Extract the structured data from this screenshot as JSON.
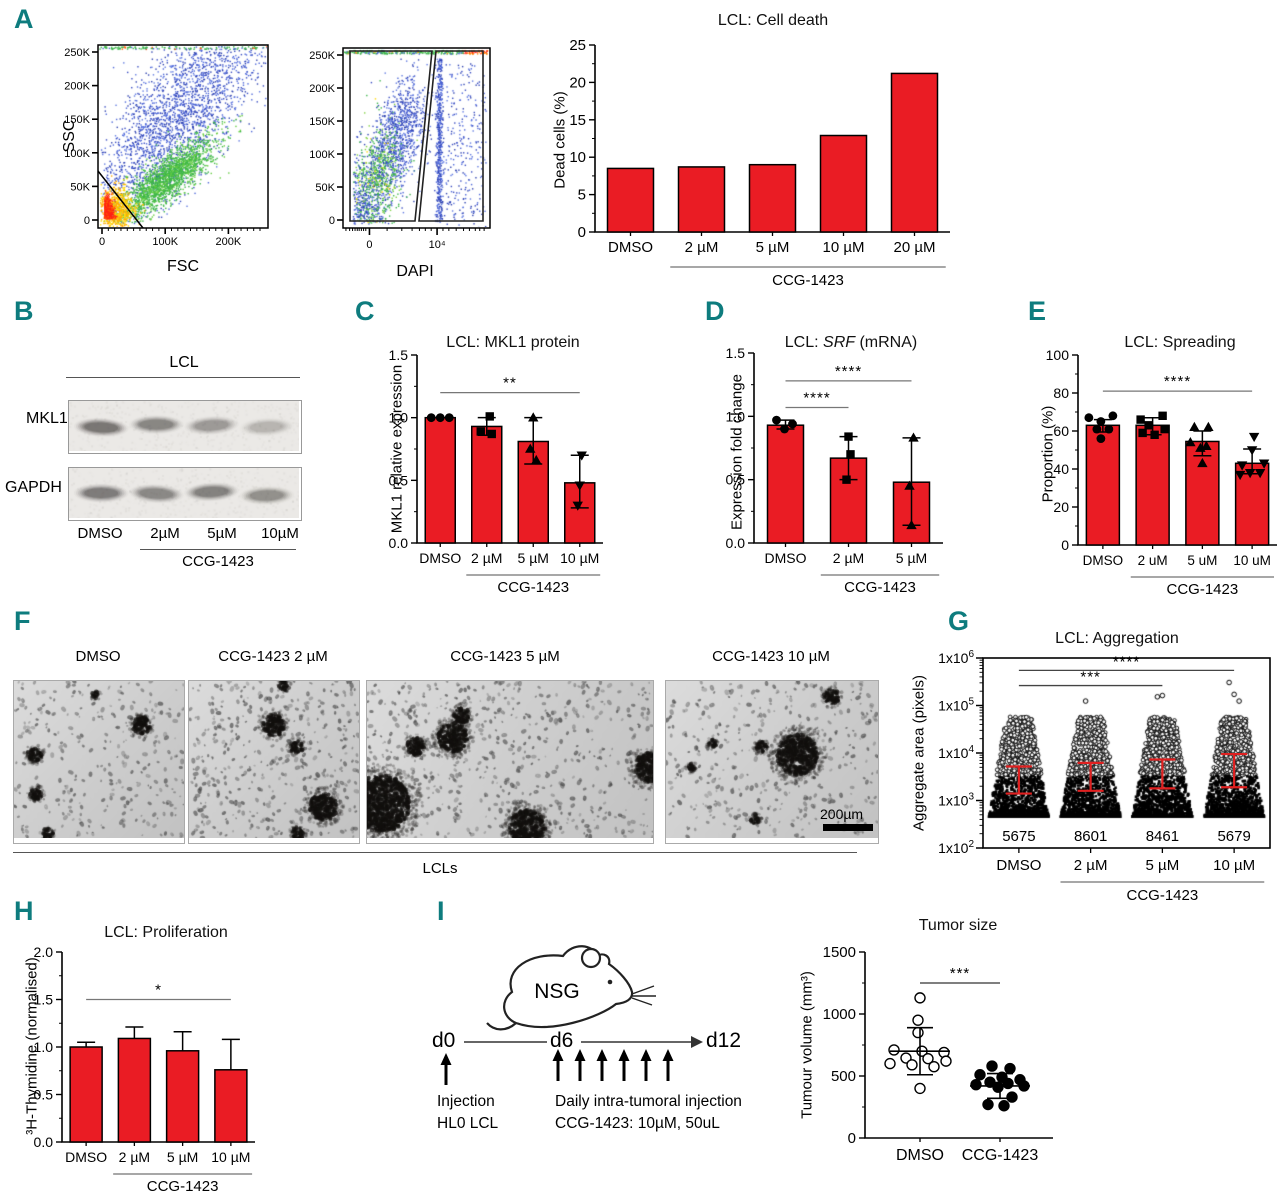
{
  "figure": {
    "background": "#ffffff",
    "bar_color": "#EA1C24",
    "panel_letter_color": "#0E7C7E",
    "error_bar_red": "#E02020"
  },
  "panels": {
    "A": {
      "label": "A",
      "flow1": {
        "ylabel": "SSC",
        "xlabel": "FSC",
        "yticks": [
          "0",
          "50K",
          "100K",
          "150K",
          "200K",
          "250K"
        ],
        "xticks": [
          "0",
          "100K",
          "200K"
        ]
      },
      "flow2": {
        "xlabel": "DAPI",
        "yticks": [
          "0",
          "50K",
          "100K",
          "150K",
          "200K",
          "250K"
        ],
        "xticks": [
          "0",
          "10⁴"
        ]
      }
    },
    "B": {
      "label": "B",
      "header": "LCL",
      "row1": "MKL1",
      "row2": "GAPDH",
      "lanes": [
        "DMSO",
        "2µM",
        "5µM",
        "10µM"
      ],
      "group": "CCG-1423",
      "mkl1_intensities": [
        1.0,
        0.82,
        0.62,
        0.38
      ],
      "gapdh_intensities": [
        0.95,
        0.8,
        0.88,
        0.72
      ]
    },
    "C": {
      "label": "C"
    },
    "D": {
      "label": "D",
      "title_prefix": "LCL: ",
      "title_italic": "SRF",
      "title_suffix": " (mRNA)"
    },
    "E": {
      "label": "E"
    },
    "F": {
      "label": "F",
      "image_labels": [
        "DMSO",
        "CCG-1423 2 µM",
        "CCG-1423 5 µM",
        "CCG-1423 10 µM"
      ],
      "scale_bar": "200µm",
      "caption": "LCLs",
      "clusters": [
        [
          [
            0.75,
            0.28,
            0.05
          ],
          [
            0.12,
            0.47,
            0.042
          ],
          [
            0.13,
            0.72,
            0.036
          ],
          [
            0.2,
            0.97,
            0.03
          ],
          [
            0.48,
            0.09,
            0.02
          ]
        ],
        [
          [
            0.5,
            0.28,
            0.062
          ],
          [
            0.63,
            0.42,
            0.038
          ],
          [
            0.79,
            0.8,
            0.078
          ],
          [
            0.64,
            0.97,
            0.035
          ],
          [
            0.56,
            0.03,
            0.03
          ]
        ],
        [
          [
            0.3,
            0.36,
            0.05
          ],
          [
            0.17,
            0.42,
            0.03
          ],
          [
            0.05,
            0.78,
            0.095
          ],
          [
            0.56,
            0.93,
            0.06
          ],
          [
            0.33,
            0.22,
            0.028
          ],
          [
            0.99,
            0.55,
            0.05
          ]
        ],
        [
          [
            0.62,
            0.47,
            0.092
          ],
          [
            0.78,
            0.1,
            0.035
          ],
          [
            0.45,
            0.42,
            0.026
          ],
          [
            0.22,
            0.4,
            0.02
          ],
          [
            0.42,
            0.88,
            0.022
          ],
          [
            0.12,
            0.55,
            0.02
          ]
        ]
      ],
      "speck_density": [
        300,
        430,
        620,
        400
      ]
    },
    "G": {
      "label": "G"
    },
    "H": {
      "label": "H"
    },
    "I": {
      "label": "I",
      "mouse": "NSG",
      "timeline": [
        "d0",
        "d6",
        "d12"
      ],
      "note1_line1": "Injection",
      "note1_line2": "HL0 LCL",
      "note2_line1": "Daily intra-tumoral injection",
      "note2_line2": "CCG-1423: 10µM, 50uL"
    }
  },
  "chart_data": [
    {
      "id": "cell_death",
      "type": "bar",
      "title": "LCL: Cell death",
      "ylabel": "Dead cells (%)",
      "ylim": [
        0,
        25
      ],
      "ytick_vals": [
        0,
        5,
        10,
        15,
        20,
        25
      ],
      "ytick_labels": [
        "0",
        "5",
        "10",
        "15",
        "20",
        "25"
      ],
      "categories": [
        "DMSO",
        "2 µM",
        "5 µM",
        "10 µM",
        "20 µM"
      ],
      "values": [
        8.5,
        8.7,
        9.0,
        12.9,
        21.2
      ],
      "group": {
        "label": "CCG-1423",
        "from": 1,
        "to": 4
      }
    },
    {
      "id": "mkl1_protein",
      "type": "bar",
      "title": "LCL: MKL1 protein",
      "ylabel": "MKL1 relative expression",
      "ylim": [
        0,
        1.5
      ],
      "ytick_vals": [
        0,
        0.5,
        1,
        1.5
      ],
      "ytick_labels": [
        "0.0",
        "0.5",
        "1.0",
        "1.5"
      ],
      "categories": [
        "DMSO",
        "2 µM",
        "5 µM",
        "10 µM"
      ],
      "values": [
        1.0,
        0.93,
        0.81,
        0.48
      ],
      "errors": [
        null,
        [
          0.86,
          1.0
        ],
        [
          0.63,
          1.0
        ],
        [
          0.28,
          0.7
        ]
      ],
      "points": [
        [
          [
            -9,
            1.0
          ],
          [
            0,
            1.0
          ],
          [
            9,
            1.0
          ]
        ],
        [
          [
            3,
            1.01
          ],
          [
            -6,
            0.89
          ],
          [
            5,
            0.87
          ]
        ],
        [
          [
            0,
            1.0
          ],
          [
            -3,
            0.75
          ],
          [
            3,
            0.66
          ]
        ],
        [
          [
            2,
            0.7
          ],
          [
            0,
            0.46
          ],
          [
            -2,
            0.3
          ]
        ]
      ],
      "markers": [
        "circle",
        "square",
        "tri",
        "vtri"
      ],
      "sig": [
        {
          "a": 0,
          "b": 3,
          "y": 1.2,
          "label": "**"
        }
      ],
      "group": {
        "label": "CCG-1423",
        "from": 1,
        "to": 3
      }
    },
    {
      "id": "srf_mrna",
      "type": "bar",
      "title": "LCL: SRF (mRNA)",
      "ylabel": "Expression fold change",
      "ylim": [
        0,
        1.5
      ],
      "ytick_vals": [
        0,
        0.5,
        1,
        1.5
      ],
      "ytick_labels": [
        "0.0",
        "0.5",
        "1.0",
        "1.5"
      ],
      "categories": [
        "DMSO",
        "2 µM",
        "5 µM"
      ],
      "values": [
        0.93,
        0.67,
        0.48
      ],
      "errors": [
        [
          0.9,
          0.97
        ],
        [
          0.5,
          0.84
        ],
        [
          0.14,
          0.83
        ]
      ],
      "points": [
        [
          [
            -9,
            0.97
          ],
          [
            -1,
            0.9
          ],
          [
            7,
            0.94
          ]
        ],
        [
          [
            0,
            0.84
          ],
          [
            2,
            0.7
          ],
          [
            -2,
            0.5
          ]
        ],
        [
          [
            2,
            0.83
          ],
          [
            -2,
            0.45
          ],
          [
            0,
            0.14
          ]
        ]
      ],
      "markers": [
        "circle",
        "square",
        "tri"
      ],
      "sig": [
        {
          "a": 0,
          "b": 1,
          "y": 1.07,
          "label": "****"
        },
        {
          "a": 0,
          "b": 2,
          "y": 1.28,
          "label": "****"
        }
      ],
      "group": {
        "label": "CCG-1423",
        "from": 1,
        "to": 2
      }
    },
    {
      "id": "spreading",
      "type": "bar",
      "title": "LCL: Spreading",
      "ylabel": "Proportion (%)",
      "ylim": [
        0,
        100
      ],
      "ytick_vals": [
        0,
        20,
        40,
        60,
        80,
        100
      ],
      "ytick_labels": [
        "0",
        "20",
        "40",
        "60",
        "80",
        "100"
      ],
      "categories": [
        "DMSO",
        "2 uM",
        "5 uM",
        "10 uM"
      ],
      "values": [
        63,
        63,
        54.5,
        43
      ],
      "errors": [
        [
          59.5,
          66
        ],
        [
          58,
          67
        ],
        [
          47,
          60
        ],
        [
          37.5,
          50.5
        ]
      ],
      "points": [
        [
          [
            -14,
            67
          ],
          [
            -2,
            65
          ],
          [
            10,
            68
          ],
          [
            6,
            61
          ],
          [
            -6,
            61
          ],
          [
            -2,
            56
          ]
        ],
        [
          [
            -12,
            66
          ],
          [
            10,
            68
          ],
          [
            -4,
            63
          ],
          [
            12,
            61
          ],
          [
            -10,
            59
          ],
          [
            2,
            58
          ]
        ],
        [
          [
            -8,
            62
          ],
          [
            6,
            62
          ],
          [
            -12,
            54
          ],
          [
            4,
            52
          ],
          [
            -2,
            51
          ],
          [
            0,
            43
          ]
        ],
        [
          [
            2,
            57
          ],
          [
            0,
            50
          ],
          [
            12,
            43
          ],
          [
            -10,
            42
          ],
          [
            -2,
            38
          ],
          [
            8,
            38
          ],
          [
            -12,
            37
          ]
        ]
      ],
      "markers": [
        "circle",
        "square",
        "tri",
        "vtri"
      ],
      "sig": [
        {
          "a": 0,
          "b": 3,
          "y": 81,
          "label": "****"
        }
      ],
      "group": {
        "label": "CCG-1423",
        "from": 1,
        "to": 3
      }
    },
    {
      "id": "aggregation",
      "type": "scatter-log",
      "title": "LCL: Aggregation",
      "ylabel": "Aggregate area (pixels)",
      "ytick_base": "1x10",
      "ytick_exps": [
        2,
        3,
        4,
        5,
        6
      ],
      "categories": [
        "DMSO",
        "2 µM",
        "5 µM",
        "10 µM"
      ],
      "counts": [
        "5675",
        "8601",
        "8461",
        "5679"
      ],
      "err_lo": [
        1400,
        1600,
        1800,
        1900
      ],
      "err_hi": [
        5200,
        6200,
        7300,
        9500
      ],
      "max_exp": [
        4.85,
        5.0,
        5.05,
        5.0
      ],
      "outliers": [
        [],
        [
          130000
        ],
        [
          160000,
          170000
        ],
        [
          320000,
          180000,
          130000
        ]
      ],
      "sig": [
        {
          "a": 0,
          "b": 2,
          "y_exp": 5.42,
          "label": "***"
        },
        {
          "a": 0,
          "b": 3,
          "y_exp": 5.74,
          "label": "****"
        }
      ],
      "group": {
        "label": "CCG-1423",
        "from": 1,
        "to": 3
      }
    },
    {
      "id": "proliferation",
      "type": "bar",
      "title": "LCL: Proliferation",
      "ylabel": "³H-Thymidine (normalised)",
      "ylim": [
        0,
        2
      ],
      "ytick_vals": [
        0,
        0.5,
        1,
        1.5,
        2
      ],
      "ytick_labels": [
        "0.0",
        "0.5",
        "1.0",
        "1.5",
        "2.0"
      ],
      "categories": [
        "DMSO",
        "2 µM",
        "5 µM",
        "10 µM"
      ],
      "values": [
        1.0,
        1.09,
        0.96,
        0.76
      ],
      "errors": [
        [
          1.0,
          1.05
        ],
        [
          1.09,
          1.21
        ],
        [
          0.96,
          1.16
        ],
        [
          0.76,
          1.08
        ]
      ],
      "err_style": "upper",
      "sig": [
        {
          "a": 0,
          "b": 3,
          "y": 1.5,
          "label": "*"
        }
      ],
      "group": {
        "label": "CCG-1423",
        "from": 1,
        "to": 3
      }
    },
    {
      "id": "tumor_size",
      "type": "scatter-cat",
      "title": "Tumor size",
      "ylabel": "Tumour volume (mm³)",
      "ylim": [
        0,
        1500
      ],
      "ytick_vals": [
        0,
        500,
        1000,
        1500
      ],
      "ytick_labels": [
        "0",
        "500",
        "1000",
        "1500"
      ],
      "categories": [
        "DMSO",
        "CCG-1423"
      ],
      "series": [
        {
          "name": "DMSO",
          "fill": "open",
          "mean": 700,
          "sd_lo": 510,
          "sd_hi": 890,
          "points": [
            [
              0,
              1130
            ],
            [
              -2,
              950
            ],
            [
              -2,
              850
            ],
            [
              -26,
              710
            ],
            [
              2,
              700
            ],
            [
              24,
              690
            ],
            [
              -14,
              645
            ],
            [
              8,
              640
            ],
            [
              26,
              620
            ],
            [
              -30,
              600
            ],
            [
              -8,
              590
            ],
            [
              14,
              575
            ],
            [
              0,
              400
            ]
          ]
        },
        {
          "name": "CCG-1423",
          "fill": "solid",
          "mean": 420,
          "sd_lo": 320,
          "sd_hi": 520,
          "points": [
            [
              -8,
              580
            ],
            [
              10,
              560
            ],
            [
              -20,
              510
            ],
            [
              2,
              490
            ],
            [
              20,
              470
            ],
            [
              -10,
              450
            ],
            [
              8,
              440
            ],
            [
              -24,
              430
            ],
            [
              24,
              420
            ],
            [
              -2,
              410
            ],
            [
              12,
              330
            ],
            [
              -12,
              270
            ],
            [
              4,
              260
            ]
          ]
        }
      ],
      "sig": {
        "y": 1250,
        "label": "***"
      }
    }
  ]
}
